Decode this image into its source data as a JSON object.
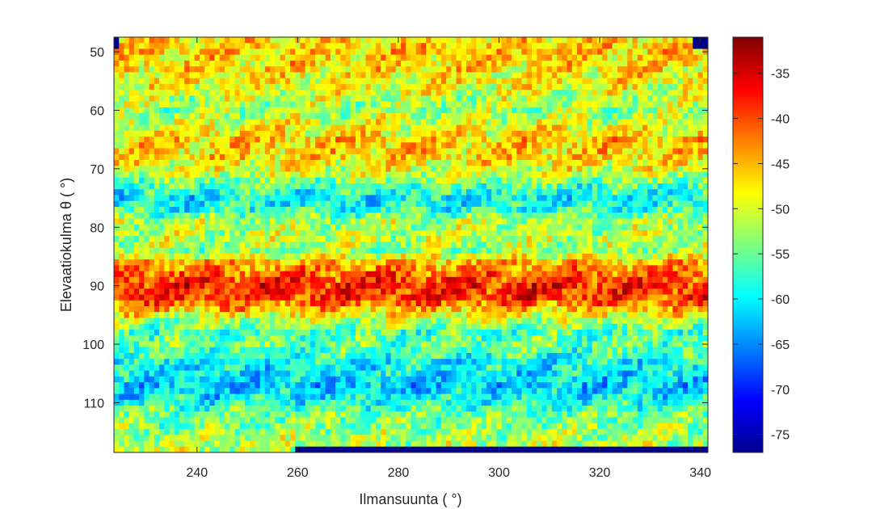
{
  "chart_data": {
    "type": "heatmap",
    "title": "",
    "xlabel": "Ilmansuunta ( °)",
    "ylabel": "Elevaatiokulma θ ( °)",
    "x_range": [
      223.5,
      341.5
    ],
    "y_range": [
      47.5,
      118.5
    ],
    "y_reversed": true,
    "x_ticks": [
      240,
      260,
      280,
      300,
      320,
      340
    ],
    "y_ticks": [
      50,
      60,
      70,
      80,
      90,
      100,
      110
    ],
    "colorbar": {
      "colormap": "jet",
      "range": [
        -77,
        -31
      ],
      "ticks": [
        -35,
        -40,
        -45,
        -50,
        -55,
        -60,
        -65,
        -70,
        -75
      ]
    },
    "cell_size_deg": 1,
    "row_profile": [
      {
        "elev": 48,
        "value": -47
      },
      {
        "elev": 50,
        "value": -46
      },
      {
        "elev": 55,
        "value": -48
      },
      {
        "elev": 58,
        "value": -51
      },
      {
        "elev": 60,
        "value": -53
      },
      {
        "elev": 62,
        "value": -50
      },
      {
        "elev": 65,
        "value": -46
      },
      {
        "elev": 68,
        "value": -47
      },
      {
        "elev": 71,
        "value": -51
      },
      {
        "elev": 73,
        "value": -56
      },
      {
        "elev": 75,
        "value": -60
      },
      {
        "elev": 77,
        "value": -58
      },
      {
        "elev": 79,
        "value": -52
      },
      {
        "elev": 82,
        "value": -51
      },
      {
        "elev": 84,
        "value": -53
      },
      {
        "elev": 86,
        "value": -45
      },
      {
        "elev": 88,
        "value": -41
      },
      {
        "elev": 90,
        "value": -38
      },
      {
        "elev": 92,
        "value": -39
      },
      {
        "elev": 94,
        "value": -45
      },
      {
        "elev": 96,
        "value": -52
      },
      {
        "elev": 98,
        "value": -56
      },
      {
        "elev": 100,
        "value": -55
      },
      {
        "elev": 103,
        "value": -59
      },
      {
        "elev": 105,
        "value": -60
      },
      {
        "elev": 107,
        "value": -62
      },
      {
        "elev": 109,
        "value": -60
      },
      {
        "elev": 112,
        "value": -55
      },
      {
        "elev": 115,
        "value": -53
      },
      {
        "elev": 118,
        "value": -51
      }
    ]
  }
}
